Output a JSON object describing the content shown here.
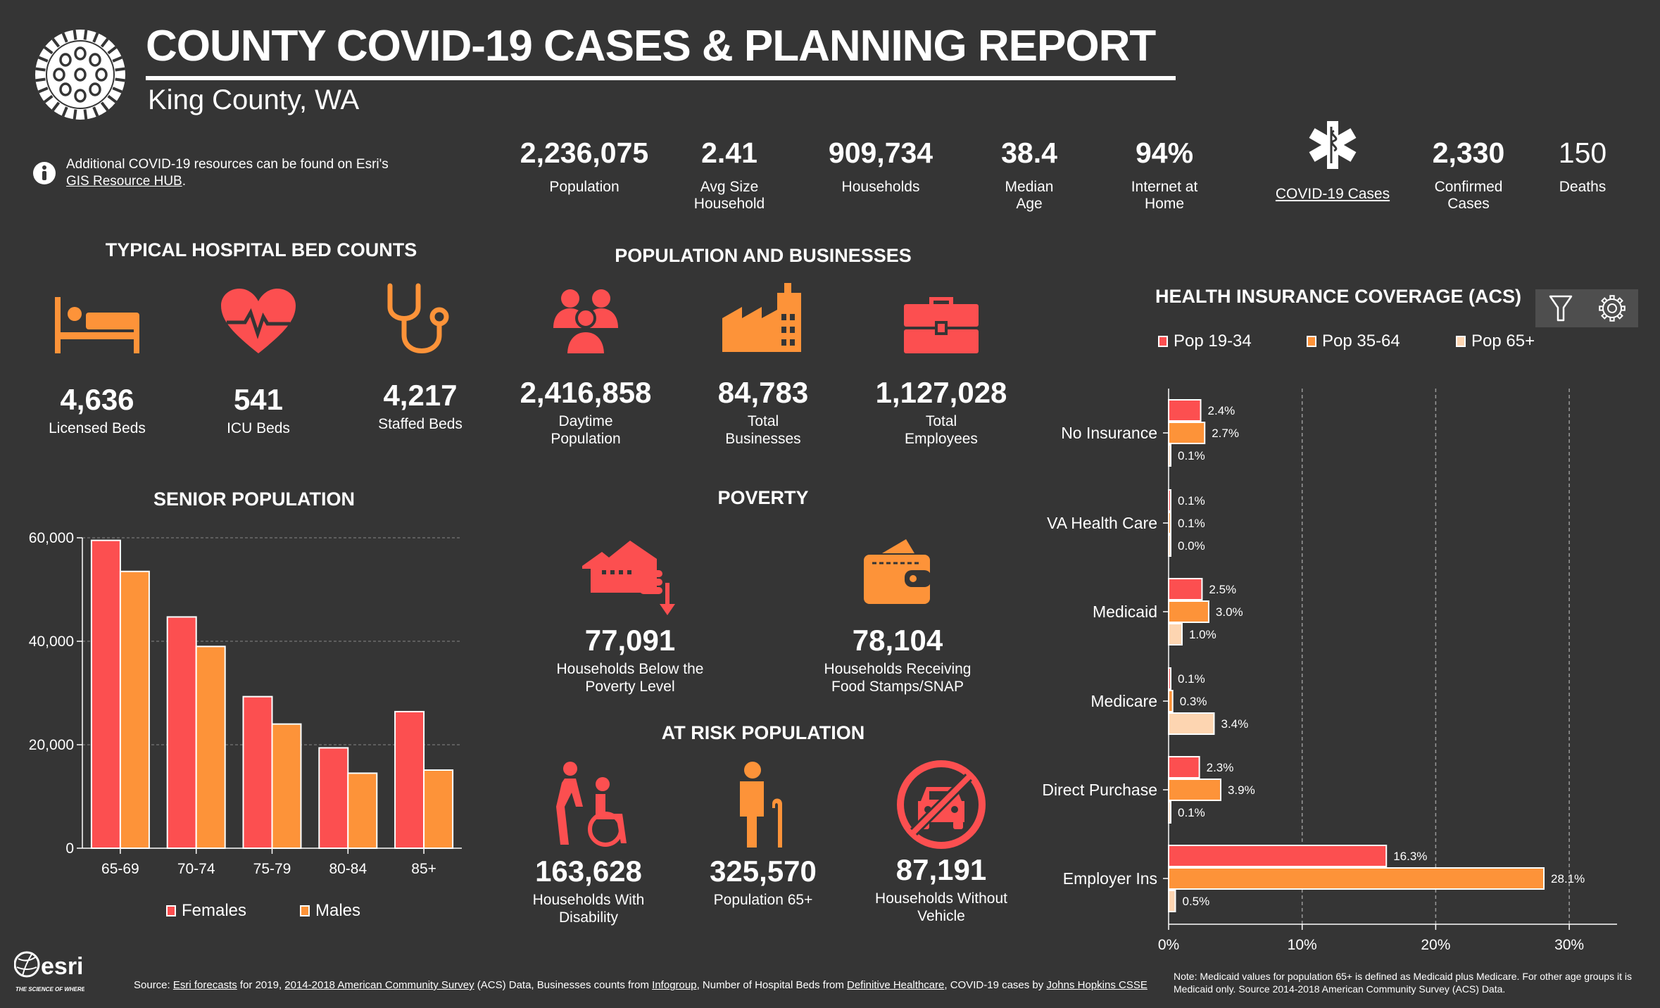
{
  "header": {
    "title": "COUNTY COVID-19 CASES & PLANNING REPORT",
    "subtitle": "King County, WA",
    "info_text": "Additional COVID-19 resources can be found on Esri's",
    "info_link": "GIS Resource HUB",
    "info_after": "."
  },
  "top_stats": [
    {
      "value": "2,236,075",
      "label": "Population"
    },
    {
      "value": "2.41",
      "label": "Avg Size\nHousehold"
    },
    {
      "value": "909,734",
      "label": "Households"
    },
    {
      "value": "38.4",
      "label": "Median\nAge"
    },
    {
      "value": "94%",
      "label": "Internet at\nHome"
    },
    {
      "value": "",
      "label": "COVID-19 Cases"
    },
    {
      "value": "2,330",
      "label": "Confirmed\nCases"
    },
    {
      "value": "150",
      "label": "Deaths"
    }
  ],
  "hospital": {
    "title": "TYPICAL HOSPITAL BED COUNTS",
    "items": [
      {
        "icon": "bed-icon",
        "value": "4,636",
        "label": "Licensed Beds"
      },
      {
        "icon": "heart-pulse-icon",
        "value": "541",
        "label": "ICU Beds"
      },
      {
        "icon": "stethoscope-icon",
        "value": "4,217",
        "label": "Staffed Beds"
      }
    ]
  },
  "population_businesses": {
    "title": "POPULATION AND BUSINESSES",
    "items": [
      {
        "icon": "people-icon",
        "value": "2,416,858",
        "label": "Daytime\nPopulation"
      },
      {
        "icon": "factory-icon",
        "value": "84,783",
        "label": "Total\nBusinesses"
      },
      {
        "icon": "briefcase-icon",
        "value": "1,127,028",
        "label": "Total\nEmployees"
      }
    ]
  },
  "poverty": {
    "title": "POVERTY",
    "items": [
      {
        "icon": "house-coins-down-icon",
        "value": "77,091",
        "label": "Households Below the\nPoverty Level"
      },
      {
        "icon": "wallet-icon",
        "value": "78,104",
        "label": "Households Receiving\nFood Stamps/SNAP"
      }
    ]
  },
  "at_risk": {
    "title": "AT RISK POPULATION",
    "items": [
      {
        "icon": "wheelchair-icon",
        "value": "163,628",
        "label": "Households With\nDisability"
      },
      {
        "icon": "elderly-icon",
        "value": "325,570",
        "label": "Population 65+"
      },
      {
        "icon": "no-vehicle-icon",
        "value": "87,191",
        "label": "Households Without\nVehicle"
      }
    ]
  },
  "colors": {
    "red": "#fc4f50",
    "orange": "#fd9339",
    "peach": "#fdd5b1",
    "background": "#353535"
  },
  "chart_data": [
    {
      "type": "bar",
      "title": "SENIOR POPULATION",
      "categories": [
        "65-69",
        "70-74",
        "75-79",
        "80-84",
        "85+"
      ],
      "series": [
        {
          "name": "Females",
          "color": "#fc4f50",
          "values": [
            59500,
            44700,
            29300,
            19400,
            26400
          ]
        },
        {
          "name": "Males",
          "color": "#fd9339",
          "values": [
            53500,
            39000,
            24000,
            14500,
            15100
          ]
        }
      ],
      "ylim": [
        0,
        60000
      ],
      "yticks": [
        "0",
        "20,000",
        "40,000",
        "60,000"
      ],
      "ytick_values": [
        0,
        20000,
        40000,
        60000
      ],
      "grid": true,
      "legend": "bottom"
    },
    {
      "type": "bar",
      "orientation": "horizontal",
      "title": "HEALTH INSURANCE COVERAGE (ACS)",
      "categories": [
        "No Insurance",
        "VA Health Care",
        "Medicaid",
        "Medicare",
        "Direct Purchase",
        "Employer Ins"
      ],
      "series": [
        {
          "name": "Pop 19-34",
          "color": "#fc4f50",
          "values": [
            2.4,
            0.1,
            2.5,
            0.1,
            2.3,
            16.3
          ],
          "labels": [
            "2.4%",
            "0.1%",
            "2.5%",
            "0.1%",
            "2.3%",
            "16.3%"
          ]
        },
        {
          "name": "Pop 35-64",
          "color": "#fd9339",
          "values": [
            2.7,
            0.1,
            3.0,
            0.3,
            3.9,
            28.1
          ],
          "labels": [
            "2.7%",
            "0.1%",
            "3.0%",
            "0.3%",
            "3.9%",
            "28.1%"
          ]
        },
        {
          "name": "Pop 65+",
          "color": "#fdd5b1",
          "values": [
            0.1,
            0.0,
            1.0,
            3.4,
            0.1,
            0.5
          ],
          "labels": [
            "0.1%",
            "0.0%",
            "1.0%",
            "3.4%",
            "0.1%",
            "0.5%"
          ]
        }
      ],
      "xlim": [
        0,
        33
      ],
      "xticks": [
        "0%",
        "10%",
        "20%",
        "30%"
      ],
      "xtick_values": [
        0,
        10,
        20,
        30
      ],
      "grid": true,
      "legend": "top"
    }
  ],
  "toolbar": {
    "filter": "filter-icon",
    "settings": "gear-icon"
  },
  "footer": {
    "source_prefix": "Source: ",
    "link1": "Esri forecasts",
    "t1": " for  2019,  ",
    "link2": "2014-2018 American Community Survey",
    "t2": " (ACS) Data, Businesses counts from ",
    "link3": "Infogroup",
    "t3": ", Number of Hospital Beds from ",
    "link4": "Definitive Healthcare",
    "t4": ", COVID-19  cases by ",
    "link5": "Johns Hopkins CSSE",
    "note": "Note: Medicaid values for population 65+ is defined as Medicaid plus Medicare. For other age groups it is Medicaid only.  Source 2014-2018 American Community Survey (ACS) Data.",
    "logo_text": "esri",
    "logo_tagline": "THE SCIENCE OF WHERE"
  }
}
